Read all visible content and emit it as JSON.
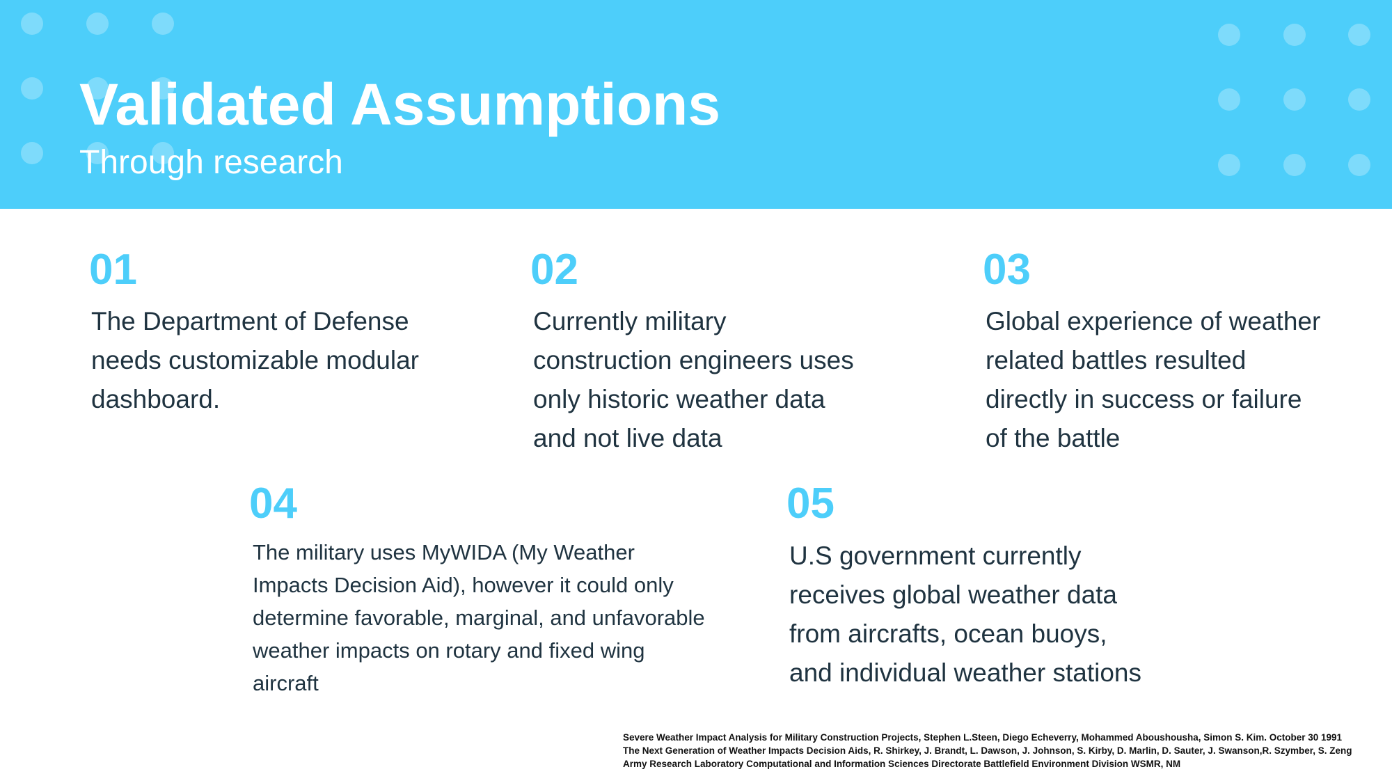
{
  "header": {
    "title": "Validated Assumptions",
    "subtitle": "Through research"
  },
  "items": [
    {
      "number": "01",
      "lines": [
        "The Department of Defense",
        "needs customizable modular",
        "dashboard."
      ]
    },
    {
      "number": "02",
      "lines": [
        "Currently military",
        "construction engineers uses",
        "only historic weather data",
        "and not live data"
      ]
    },
    {
      "number": "03",
      "lines": [
        "Global experience of weather",
        "related battles resulted",
        "directly in success or failure",
        "of the battle"
      ]
    },
    {
      "number": "04",
      "lines": [
        "The military uses MyWIDA (My Weather",
        "Impacts Decision Aid), however it could only",
        "determine favorable, marginal, and unfavorable",
        "weather impacts on rotary and fixed wing",
        "aircraft"
      ]
    },
    {
      "number": "05",
      "lines": [
        "U.S government currently",
        "receives global weather data",
        "from aircrafts, ocean buoys,",
        "and individual weather stations"
      ]
    }
  ],
  "references": [
    "Severe Weather Impact Analysis for Military Construction Projects, Stephen L.Steen, Diego Echeverry, Mohammed Aboushousha, Simon S. Kim. October 30 1991",
    "The Next Generation of Weather Impacts Decision Aids, R. Shirkey, J. Brandt, L. Dawson, J. Johnson, S. Kirby, D. Marlin, D. Sauter, J. Swanson,R. Szymber, S. Zeng",
    "Army Research Laboratory Computational and Information Sciences Directorate Battlefield Environment Division WSMR, NM"
  ],
  "colors": {
    "accent": "#4dcefa",
    "text": "#1f3340",
    "header_text": "#ffffff"
  }
}
